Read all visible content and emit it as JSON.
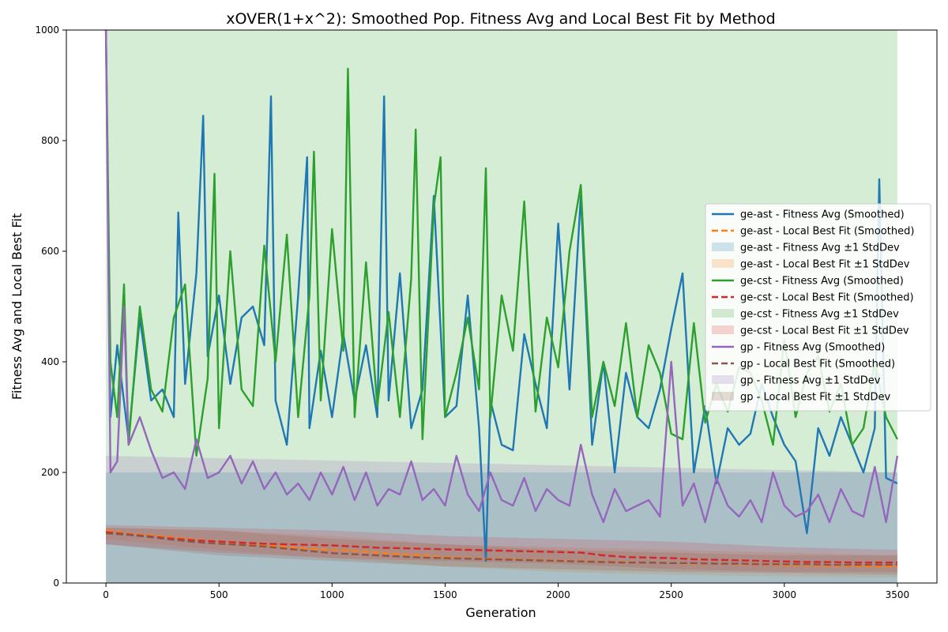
{
  "chart_data": {
    "type": "line",
    "title": "xOVER(1+x^2): Smoothed Pop. Fitness Avg and Local Best Fit by Method",
    "xlabel": "Generation",
    "ylabel": "Fitness Avg and Local Best Fit",
    "xlim": [
      -175,
      3675
    ],
    "ylim": [
      0,
      1000
    ],
    "xticks": [
      0,
      500,
      1000,
      1500,
      2000,
      2500,
      3000,
      3500
    ],
    "yticks": [
      0,
      200,
      400,
      600,
      800,
      1000
    ],
    "grid": false,
    "legend_position": "center-right",
    "legend": [
      {
        "label": "ge-ast - Fitness Avg (Smoothed)",
        "kind": "line",
        "color": "#1f77b4"
      },
      {
        "label": "ge-ast - Local Best Fit (Smoothed)",
        "kind": "dashed",
        "color": "#ff7f0e"
      },
      {
        "label": "ge-ast - Fitness Avg ±1 StdDev",
        "kind": "band",
        "color": "#1f77b4"
      },
      {
        "label": "ge-ast - Local Best Fit ±1 StdDev",
        "kind": "band",
        "color": "#ff7f0e"
      },
      {
        "label": "ge-cst - Fitness Avg (Smoothed)",
        "kind": "line",
        "color": "#2ca02c"
      },
      {
        "label": "ge-cst - Local Best Fit (Smoothed)",
        "kind": "dashed",
        "color": "#d62728"
      },
      {
        "label": "ge-cst - Fitness Avg ±1 StdDev",
        "kind": "band",
        "color": "#2ca02c"
      },
      {
        "label": "ge-cst - Local Best Fit ±1 StdDev",
        "kind": "band",
        "color": "#d62728"
      },
      {
        "label": "gp - Fitness Avg (Smoothed)",
        "kind": "line",
        "color": "#9467bd"
      },
      {
        "label": "gp - Local Best Fit (Smoothed)",
        "kind": "dashed",
        "color": "#8c564b"
      },
      {
        "label": "gp - Fitness Avg ±1 StdDev",
        "kind": "band",
        "color": "#9467bd"
      },
      {
        "label": "gp - Local Best Fit ±1 StdDev",
        "kind": "band",
        "color": "#8c564b"
      }
    ],
    "series": [
      {
        "name": "ge-ast - Fitness Avg (Smoothed)",
        "style": "solid",
        "color": "#1f77b4",
        "x": [
          0,
          20,
          50,
          100,
          150,
          200,
          250,
          300,
          320,
          350,
          400,
          430,
          450,
          500,
          550,
          600,
          650,
          700,
          730,
          750,
          800,
          850,
          890,
          900,
          950,
          1000,
          1050,
          1100,
          1150,
          1200,
          1230,
          1250,
          1300,
          1350,
          1400,
          1450,
          1500,
          1550,
          1600,
          1650,
          1680,
          1700,
          1750,
          1800,
          1850,
          1900,
          1950,
          2000,
          2050,
          2100,
          2150,
          2200,
          2250,
          2300,
          2350,
          2400,
          2450,
          2500,
          2550,
          2600,
          2650,
          2700,
          2750,
          2800,
          2850,
          2900,
          2950,
          3000,
          3050,
          3100,
          3150,
          3200,
          3250,
          3300,
          3350,
          3400,
          3420,
          3450,
          3500
        ],
        "y": [
          1000,
          300,
          430,
          260,
          480,
          330,
          350,
          300,
          670,
          360,
          560,
          845,
          410,
          520,
          360,
          480,
          500,
          430,
          880,
          330,
          250,
          520,
          770,
          280,
          420,
          300,
          450,
          330,
          430,
          300,
          880,
          330,
          560,
          280,
          350,
          700,
          300,
          320,
          520,
          280,
          40,
          330,
          250,
          240,
          450,
          360,
          280,
          650,
          350,
          700,
          250,
          400,
          200,
          380,
          300,
          280,
          350,
          460,
          560,
          200,
          320,
          180,
          280,
          250,
          270,
          360,
          300,
          250,
          220,
          90,
          280,
          230,
          300,
          250,
          200,
          280,
          730,
          190,
          180
        ]
      },
      {
        "name": "ge-ast - Local Best Fit (Smoothed)",
        "style": "dashed",
        "color": "#ff7f0e",
        "x": [
          0,
          100,
          200,
          300,
          400,
          500,
          600,
          700,
          800,
          900,
          1000,
          1100,
          1200,
          1300,
          1400,
          1500,
          1600,
          1700,
          1800,
          1900,
          2000,
          2100,
          2200,
          2300,
          2400,
          2500,
          2600,
          2700,
          2800,
          2900,
          3000,
          3100,
          3200,
          3300,
          3400,
          3500
        ],
        "y": [
          95,
          89,
          86,
          82,
          78,
          75,
          72,
          68,
          65,
          62,
          60,
          58,
          55,
          52,
          50,
          47,
          45,
          44,
          43,
          42,
          41,
          40,
          39,
          38,
          37,
          36,
          35,
          35,
          34,
          33,
          32,
          32,
          31,
          31,
          30,
          30
        ]
      },
      {
        "name": "ge-cst - Fitness Avg (Smoothed)",
        "style": "solid",
        "color": "#2ca02c",
        "x": [
          0,
          20,
          50,
          80,
          100,
          150,
          200,
          250,
          300,
          350,
          400,
          450,
          480,
          500,
          550,
          600,
          650,
          700,
          750,
          800,
          850,
          900,
          920,
          950,
          1000,
          1050,
          1070,
          1100,
          1150,
          1200,
          1250,
          1300,
          1350,
          1370,
          1400,
          1450,
          1480,
          1500,
          1550,
          1600,
          1650,
          1680,
          1700,
          1750,
          1800,
          1850,
          1900,
          1950,
          2000,
          2050,
          2100,
          2150,
          2200,
          2250,
          2300,
          2350,
          2400,
          2450,
          2500,
          2550,
          2600,
          2650,
          2700,
          2750,
          2800,
          2850,
          2900,
          2950,
          3000,
          3050,
          3100,
          3150,
          3200,
          3250,
          3300,
          3350,
          3400,
          3450,
          3500
        ],
        "y": [
          1000,
          400,
          300,
          540,
          250,
          500,
          350,
          310,
          480,
          540,
          230,
          370,
          740,
          280,
          600,
          350,
          320,
          610,
          400,
          630,
          300,
          520,
          780,
          330,
          640,
          420,
          930,
          300,
          580,
          320,
          490,
          300,
          550,
          820,
          260,
          680,
          770,
          300,
          380,
          480,
          350,
          750,
          300,
          520,
          420,
          690,
          310,
          480,
          390,
          600,
          720,
          300,
          400,
          320,
          470,
          300,
          430,
          380,
          270,
          260,
          470,
          290,
          360,
          310,
          390,
          380,
          330,
          250,
          440,
          300,
          380,
          410,
          310,
          360,
          250,
          280,
          400,
          300,
          260
        ]
      },
      {
        "name": "ge-cst - Local Best Fit (Smoothed)",
        "style": "dashed",
        "color": "#d62728",
        "x": [
          0,
          100,
          200,
          300,
          400,
          500,
          600,
          700,
          800,
          900,
          1000,
          1100,
          1200,
          1300,
          1400,
          1500,
          1600,
          1700,
          1800,
          1900,
          2000,
          2100,
          2200,
          2300,
          2400,
          2500,
          2600,
          2700,
          2800,
          2900,
          3000,
          3100,
          3200,
          3300,
          3400,
          3500
        ],
        "y": [
          92,
          88,
          84,
          80,
          77,
          75,
          73,
          71,
          70,
          69,
          68,
          66,
          64,
          63,
          62,
          61,
          60,
          59,
          58,
          57,
          56,
          55,
          50,
          47,
          46,
          45,
          43,
          42,
          41,
          40,
          39,
          38,
          38,
          37,
          37,
          37
        ]
      },
      {
        "name": "gp - Fitness Avg (Smoothed)",
        "style": "solid",
        "color": "#9467bd",
        "x": [
          0,
          20,
          50,
          80,
          100,
          150,
          200,
          250,
          300,
          350,
          400,
          450,
          500,
          550,
          600,
          650,
          700,
          750,
          800,
          850,
          900,
          950,
          1000,
          1050,
          1100,
          1150,
          1200,
          1250,
          1300,
          1350,
          1400,
          1450,
          1500,
          1550,
          1600,
          1650,
          1700,
          1750,
          1800,
          1850,
          1900,
          1950,
          2000,
          2050,
          2100,
          2150,
          2200,
          2250,
          2300,
          2350,
          2400,
          2450,
          2500,
          2550,
          2600,
          2650,
          2700,
          2750,
          2800,
          2850,
          2900,
          2950,
          3000,
          3050,
          3100,
          3150,
          3200,
          3250,
          3300,
          3350,
          3400,
          3450,
          3500
        ],
        "y": [
          1000,
          200,
          220,
          500,
          250,
          300,
          240,
          190,
          200,
          170,
          260,
          190,
          200,
          230,
          180,
          220,
          170,
          200,
          160,
          180,
          150,
          200,
          160,
          210,
          150,
          200,
          140,
          170,
          160,
          220,
          150,
          170,
          140,
          230,
          160,
          130,
          200,
          150,
          140,
          190,
          130,
          170,
          150,
          140,
          250,
          160,
          110,
          170,
          130,
          140,
          150,
          120,
          400,
          140,
          180,
          110,
          190,
          140,
          120,
          150,
          110,
          200,
          140,
          120,
          130,
          160,
          110,
          170,
          130,
          120,
          210,
          110,
          230
        ]
      },
      {
        "name": "gp - Local Best Fit (Smoothed)",
        "style": "dashed",
        "color": "#8c564b",
        "x": [
          0,
          100,
          200,
          300,
          400,
          500,
          600,
          700,
          800,
          900,
          1000,
          1100,
          1200,
          1300,
          1400,
          1500,
          1600,
          1700,
          1800,
          1900,
          2000,
          2100,
          2200,
          2300,
          2400,
          2500,
          2600,
          2700,
          2800,
          2900,
          3000,
          3100,
          3200,
          3300,
          3400,
          3500
        ],
        "y": [
          90,
          87,
          83,
          78,
          74,
          71,
          69,
          66,
          62,
          58,
          54,
          52,
          50,
          48,
          46,
          45,
          44,
          43,
          42,
          41,
          40,
          39,
          38,
          37,
          37,
          36,
          36,
          35,
          35,
          34,
          34,
          34,
          33,
          33,
          33,
          33
        ]
      }
    ],
    "bands": [
      {
        "name": "ge-ast - Fitness Avg ±1 StdDev",
        "color": "#1f77b4",
        "x": [
          0,
          3500
        ],
        "lower": [
          0,
          0
        ],
        "upper": [
          200,
          200
        ]
      },
      {
        "name": "ge-ast - Local Best Fit ±1 StdDev",
        "color": "#ff7f0e",
        "x": [
          0,
          500,
          1000,
          1500,
          2000,
          2500,
          3000,
          3500
        ],
        "lower": [
          80,
          60,
          45,
          30,
          20,
          15,
          12,
          10
        ],
        "upper": [
          100,
          95,
          85,
          70,
          65,
          60,
          55,
          50
        ]
      },
      {
        "name": "ge-cst - Fitness Avg ±1 StdDev",
        "color": "#2ca02c",
        "x": [
          0,
          3500
        ],
        "lower": [
          0,
          0
        ],
        "upper": [
          1000,
          1000
        ]
      },
      {
        "name": "ge-cst - Local Best Fit ±1 StdDev",
        "color": "#d62728",
        "x": [
          0,
          500,
          1000,
          1500,
          2000,
          2500,
          3000,
          3500
        ],
        "lower": [
          70,
          55,
          45,
          40,
          35,
          25,
          20,
          20
        ],
        "upper": [
          105,
          100,
          95,
          85,
          80,
          75,
          65,
          60
        ]
      },
      {
        "name": "gp - Fitness Avg ±1 StdDev",
        "color": "#9467bd",
        "x": [
          0,
          3500
        ],
        "lower": [
          0,
          0
        ],
        "upper": [
          230,
          200
        ]
      },
      {
        "name": "gp - Local Best Fit ±1 StdDev",
        "color": "#8c564b",
        "x": [
          0,
          500,
          1000,
          1500,
          2000,
          2500,
          3000,
          3500
        ],
        "lower": [
          70,
          50,
          40,
          30,
          25,
          20,
          18,
          15
        ],
        "upper": [
          100,
          95,
          80,
          70,
          60,
          55,
          50,
          50
        ]
      }
    ]
  }
}
